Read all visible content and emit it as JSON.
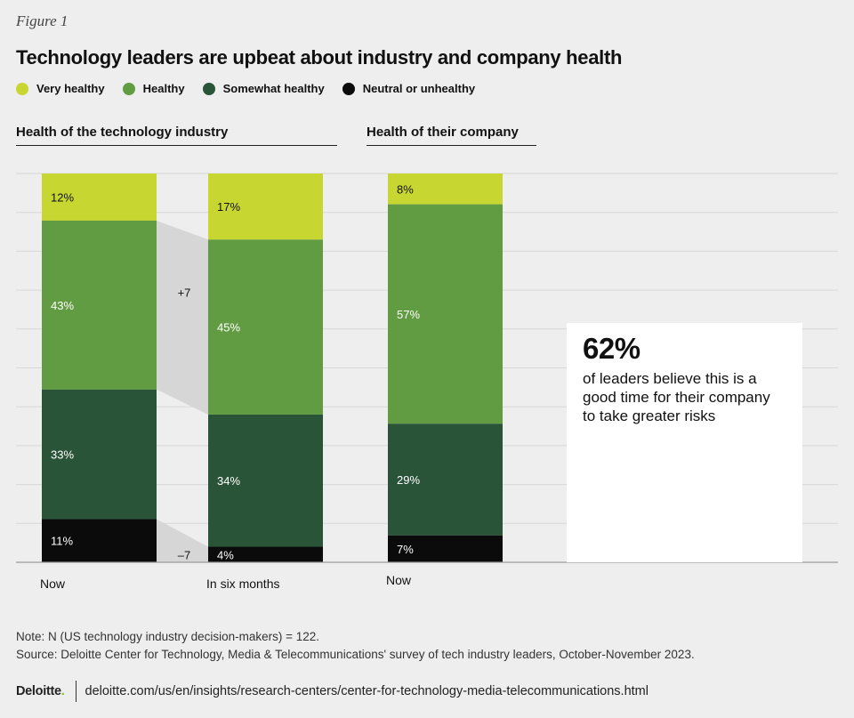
{
  "figure_label": "Figure 1",
  "title": "Technology leaders are upbeat about industry and company health",
  "legend": [
    {
      "label": "Very healthy",
      "color": "#c7d631"
    },
    {
      "label": "Healthy",
      "color": "#629c42"
    },
    {
      "label": "Somewhat healthy",
      "color": "#2a5438"
    },
    {
      "label": "Neutral or unhealthy",
      "color": "#0b0b0b"
    }
  ],
  "sections": {
    "industry": "Health of the technology industry",
    "company": "Health of their company"
  },
  "chart_data": {
    "type": "bar",
    "stacked": true,
    "unit": "%",
    "categories": [
      "Now",
      "In six months",
      "Now"
    ],
    "groups": [
      "Health of the technology industry",
      "Health of the technology industry",
      "Health of their company"
    ],
    "series": [
      {
        "name": "Very healthy",
        "color": "#c7d631",
        "values": [
          12,
          17,
          8
        ]
      },
      {
        "name": "Healthy",
        "color": "#629c42",
        "values": [
          43,
          45,
          57
        ]
      },
      {
        "name": "Somewhat healthy",
        "color": "#2a5438",
        "values": [
          33,
          34,
          29
        ]
      },
      {
        "name": "Neutral or unhealthy",
        "color": "#0b0b0b",
        "values": [
          11,
          4,
          7
        ]
      }
    ],
    "value_labels": [
      [
        "12%",
        "43%",
        "33%",
        "11%"
      ],
      [
        "17%",
        "45%",
        "34%",
        "4%"
      ],
      [
        "8%",
        "57%",
        "29%",
        "7%"
      ]
    ],
    "change_annotations": [
      {
        "label": "+7",
        "between": [
          0,
          1
        ],
        "segment": "Healthy"
      },
      {
        "label": "–7",
        "between": [
          0,
          1
        ],
        "segment": "Neutral or unhealthy"
      }
    ],
    "ylim": [
      0,
      100
    ],
    "grid": true
  },
  "callout": {
    "value": "62%",
    "text": "of leaders believe this is a good time for their company to take greater risks"
  },
  "note": "Note: N (US technology industry decision-makers) = 122.",
  "source": "Source: Deloitte Center for Technology, Media & Telecommunications' survey of tech industry leaders, October-November 2023.",
  "footer": {
    "logo": "Deloitte",
    "logo_dot": ".",
    "url": "deloitte.com/us/en/insights/research-centers/center-for-technology-media-telecommunications.html"
  }
}
